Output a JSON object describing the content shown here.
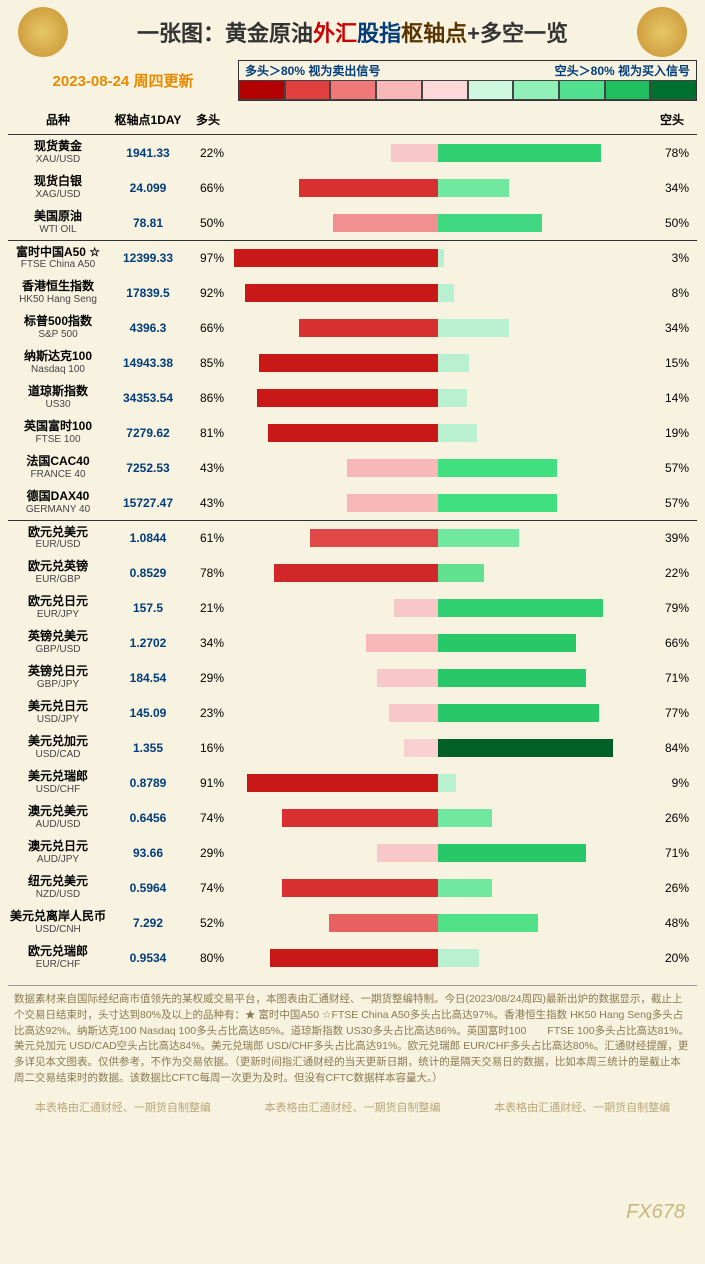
{
  "title": {
    "prefix": "一张图：",
    "p1": "黄金原油",
    "p2": "外汇",
    "p3": "股指",
    "p4": "枢轴点",
    "p5": "+多空一览"
  },
  "date_line": "2023-08-24 周四更新",
  "legend": {
    "left": "多头＞80% 视为卖出信号",
    "right": "空头＞80% 视为买入信号",
    "colors": [
      "#b30000",
      "#e04040",
      "#f07878",
      "#f8b8b8",
      "#fcd8d8",
      "#d0f8e0",
      "#90f0b8",
      "#50e090",
      "#20c060",
      "#007030"
    ]
  },
  "headers": {
    "name": "品种",
    "pivot": "枢轴点1DAY",
    "long": "多头",
    "short": "空头"
  },
  "bar_colors": {
    "long_strong": "#d02020",
    "long_weak": "#f8d0d0",
    "short_strong": "#20c060",
    "short_dark": "#007030",
    "short_weak": "#c0f0d0"
  },
  "sections": [
    {
      "rows": [
        {
          "cn": "现货黄金",
          "en": "XAU/USD",
          "pivot": "1941.33",
          "long": 22,
          "short": 78,
          "lc": "#f8c8c8",
          "sc": "#30d070"
        },
        {
          "cn": "现货白银",
          "en": "XAG/USD",
          "pivot": "24.099",
          "long": 66,
          "short": 34,
          "lc": "#d83030",
          "sc": "#70e8a0"
        },
        {
          "cn": "美国原油",
          "en": "WTI OIL",
          "pivot": "78.81",
          "long": 50,
          "short": 50,
          "lc": "#f09090",
          "sc": "#40d880"
        }
      ]
    },
    {
      "rows": [
        {
          "cn": "富时中国A50 ☆",
          "en": "FTSE China A50",
          "pivot": "12399.33",
          "long": 97,
          "short": 3,
          "lc": "#c81818",
          "sc": "#b8f0d0"
        },
        {
          "cn": "香港恒生指数",
          "en": "HK50 Hang Seng",
          "pivot": "17839.5",
          "long": 92,
          "short": 8,
          "lc": "#c81818",
          "sc": "#b8f0d0"
        },
        {
          "cn": "标普500指数",
          "en": "S&P 500",
          "pivot": "4396.3",
          "long": 66,
          "short": 34,
          "lc": "#d83030",
          "sc": "#b8f0d0"
        },
        {
          "cn": "纳斯达克100",
          "en": "Nasdaq 100",
          "pivot": "14943.38",
          "long": 85,
          "short": 15,
          "lc": "#c81818",
          "sc": "#b8f0d0"
        },
        {
          "cn": "道琼斯指数",
          "en": "US30",
          "pivot": "34353.54",
          "long": 86,
          "short": 14,
          "lc": "#c81818",
          "sc": "#b8f0d0"
        },
        {
          "cn": "英国富时100",
          "en": "FTSE 100",
          "pivot": "7279.62",
          "long": 81,
          "short": 19,
          "lc": "#c81818",
          "sc": "#b8f0d0"
        },
        {
          "cn": "法国CAC40",
          "en": "FRANCE 40",
          "pivot": "7252.53",
          "long": 43,
          "short": 57,
          "lc": "#f8b8b8",
          "sc": "#40e080"
        },
        {
          "cn": "德国DAX40",
          "en": "GERMANY 40",
          "pivot": "15727.47",
          "long": 43,
          "short": 57,
          "lc": "#f8b8b8",
          "sc": "#40e080"
        }
      ]
    },
    {
      "rows": [
        {
          "cn": "欧元兑美元",
          "en": "EUR/USD",
          "pivot": "1.0844",
          "long": 61,
          "short": 39,
          "lc": "#e04848",
          "sc": "#70e8a0"
        },
        {
          "cn": "欧元兑英镑",
          "en": "EUR/GBP",
          "pivot": "0.8529",
          "long": 78,
          "short": 22,
          "lc": "#d02828",
          "sc": "#60e090"
        },
        {
          "cn": "欧元兑日元",
          "en": "EUR/JPY",
          "pivot": "157.5",
          "long": 21,
          "short": 79,
          "lc": "#f8c8c8",
          "sc": "#30d070"
        },
        {
          "cn": "英镑兑美元",
          "en": "GBP/USD",
          "pivot": "1.2702",
          "long": 34,
          "short": 66,
          "lc": "#f8b8b8",
          "sc": "#28c868"
        },
        {
          "cn": "英镑兑日元",
          "en": "GBP/JPY",
          "pivot": "184.54",
          "long": 29,
          "short": 71,
          "lc": "#f8c8c8",
          "sc": "#28c868"
        },
        {
          "cn": "美元兑日元",
          "en": "USD/JPY",
          "pivot": "145.09",
          "long": 23,
          "short": 77,
          "lc": "#f8c8c8",
          "sc": "#28c868"
        },
        {
          "cn": "美元兑加元",
          "en": "USD/CAD",
          "pivot": "1.355",
          "long": 16,
          "short": 84,
          "lc": "#f8d0d0",
          "sc": "#006028"
        },
        {
          "cn": "美元兑瑞郎",
          "en": "USD/CHF",
          "pivot": "0.8789",
          "long": 91,
          "short": 9,
          "lc": "#c81818",
          "sc": "#b8f0d0"
        },
        {
          "cn": "澳元兑美元",
          "en": "AUD/USD",
          "pivot": "0.6456",
          "long": 74,
          "short": 26,
          "lc": "#d83030",
          "sc": "#70e8a0"
        },
        {
          "cn": "澳元兑日元",
          "en": "AUD/JPY",
          "pivot": "93.66",
          "long": 29,
          "short": 71,
          "lc": "#f8c8c8",
          "sc": "#28c868"
        },
        {
          "cn": "纽元兑美元",
          "en": "NZD/USD",
          "pivot": "0.5964",
          "long": 74,
          "short": 26,
          "lc": "#d83030",
          "sc": "#70e8a0"
        },
        {
          "cn": "美元兑离岸人民币",
          "en": "USD/CNH",
          "pivot": "7.292",
          "long": 52,
          "short": 48,
          "lc": "#e86060",
          "sc": "#50e088"
        },
        {
          "cn": "欧元兑瑞郎",
          "en": "EUR/CHF",
          "pivot": "0.9534",
          "long": 80,
          "short": 20,
          "lc": "#c81818",
          "sc": "#b8f0d0"
        }
      ]
    }
  ],
  "footer_text": "数据素材来自国际经纪商市值领先的某权威交易平台，本图表由汇通财经、一期货整编特制。今日(2023/08/24周四)最新出炉的数据显示，截止上个交易日结束时，头寸达到80%及以上的品种有：★ 富时中国A50 ☆FTSE China A50多头占比高达97%。香港恒生指数 HK50 Hang Seng多头占比高达92%。纳斯达克100 Nasdaq 100多头占比高达85%。道琼斯指数 US30多头占比高达86%。英国富时100　　FTSE 100多头占比高达81%。美元兑加元 USD/CAD空头占比高达84%。美元兑瑞郎 USD/CHF多头占比高达91%。欧元兑瑞郎 EUR/CHF多头占比高达80%。汇通财经提醒，更多详见本文图表。仅供参考，不作为交易依据。（更新时间指汇通财经的当天更新日期，统计的是隔天交易日的数据，比如本周三统计的是截止本周二交易结束时的数据。该数据比CFTC每周一次更为及时。但没有CFTC数据样本容量大。）",
  "watermark_text": "本表格由汇通财经、一期货自制整编",
  "fx678": "FX678"
}
